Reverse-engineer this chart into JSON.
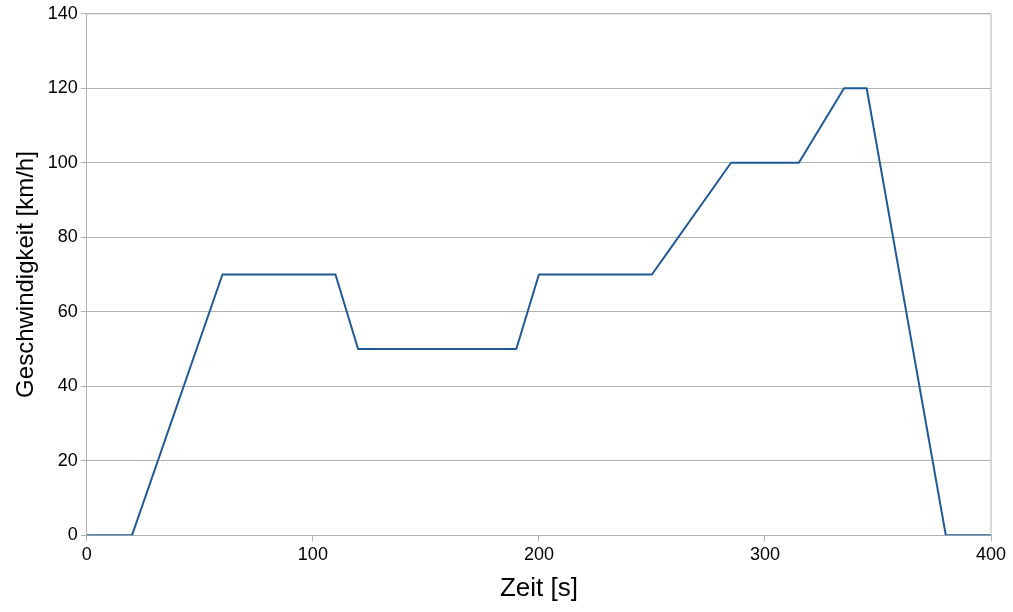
{
  "chart_data": {
    "type": "line",
    "xlabel": "Zeit [s]",
    "ylabel": "Geschwindigkeit [km/h]",
    "series": [
      {
        "color": "#1f5a96",
        "x": [
          0,
          20,
          60,
          110,
          120,
          190,
          200,
          250,
          285,
          315,
          335,
          345,
          380,
          400
        ],
        "values": [
          0,
          0,
          70,
          70,
          50,
          50,
          70,
          70,
          100,
          100,
          120,
          120,
          0,
          0
        ]
      }
    ],
    "xlim": [
      0,
      400
    ],
    "xticks": [
      0,
      100,
      200,
      300,
      400
    ],
    "ylim": [
      0,
      140
    ],
    "yticks": [
      0,
      20,
      40,
      60,
      80,
      100,
      120,
      140
    ],
    "grid": "y",
    "legend": false,
    "marker": "none",
    "line_style": "solid"
  }
}
